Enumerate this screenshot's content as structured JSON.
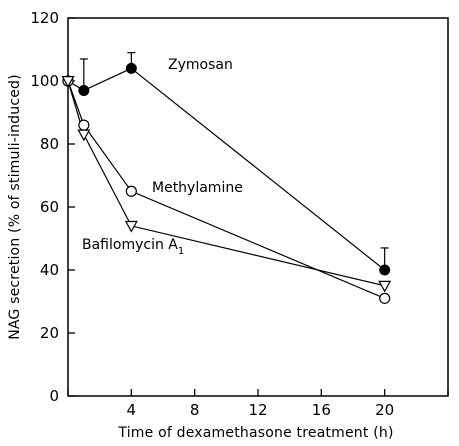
{
  "chart_data": {
    "type": "line",
    "title": "",
    "xlabel": "Time of dexamethasone treatment (h)",
    "ylabel": "NAG secretion (% of stimuli-induced)",
    "xlim": [
      0,
      24
    ],
    "ylim": [
      0,
      120
    ],
    "xticks": [
      0,
      4,
      8,
      12,
      16,
      20,
      24
    ],
    "xtick_labels": [
      "",
      "4",
      "8",
      "12",
      "16",
      "20",
      ""
    ],
    "yticks": [
      0,
      20,
      40,
      60,
      80,
      100,
      120
    ],
    "ytick_labels": [
      "0",
      "20",
      "40",
      "60",
      "80",
      "100",
      "120"
    ],
    "grid": false,
    "legend": "none",
    "series": [
      {
        "name": "Zymosan",
        "marker": "filled-circle",
        "x": [
          0,
          1,
          4,
          20
        ],
        "y": [
          100,
          97,
          104,
          40
        ],
        "error_up": [
          null,
          10,
          5,
          7
        ]
      },
      {
        "name": "Methylamine",
        "marker": "open-circle",
        "x": [
          0,
          1,
          4,
          20
        ],
        "y": [
          100,
          86,
          65,
          31
        ],
        "error_up": [
          null,
          null,
          null,
          null
        ]
      },
      {
        "name": "Bafilomycin A",
        "name_subscript": "1",
        "marker": "open-triangle-down",
        "x": [
          0,
          1,
          4,
          20
        ],
        "y": [
          100,
          83,
          54,
          35
        ],
        "error_up": [
          null,
          null,
          null,
          null
        ]
      }
    ]
  }
}
